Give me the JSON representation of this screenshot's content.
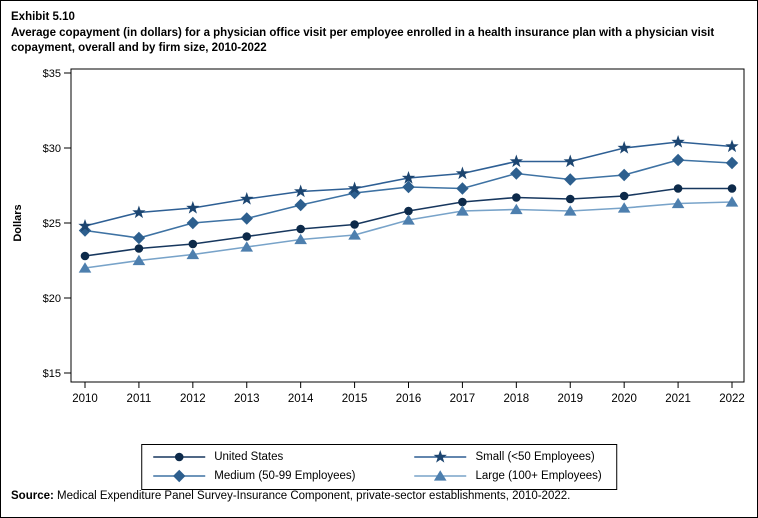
{
  "figure": {
    "exhibit_label": "Exhibit 5.10",
    "title": "Average copayment (in dollars) for a physician office visit per employee enrolled in a health insurance plan with a physician visit copayment, overall and by firm size, 2010-2022",
    "source_label": "Source:",
    "source_text": " Medical Expenditure Panel Survey-Insurance Component, private-sector establishments, 2010-2022."
  },
  "chart_data": {
    "type": "line",
    "title": "Average copayment (in dollars) for a physician office visit per employee enrolled in a health insurance plan with a physician visit copayment, overall and by firm size, 2010-2022",
    "xlabel": "",
    "ylabel": "Dollars",
    "x": [
      2010,
      2011,
      2012,
      2013,
      2014,
      2015,
      2016,
      2017,
      2018,
      2019,
      2020,
      2021,
      2022
    ],
    "ylim": [
      15,
      35
    ],
    "ytick_step": 5,
    "ytick_labels": [
      "$15",
      "$20",
      "$25",
      "$30",
      "$35"
    ],
    "grid": false,
    "legend_position": "bottom",
    "series": [
      {
        "name": "United States",
        "marker": "circle",
        "line_color": "#17375e",
        "marker_color": "#0d2a4a",
        "values": [
          22.8,
          23.3,
          23.6,
          24.1,
          24.6,
          24.9,
          25.8,
          26.4,
          26.7,
          26.6,
          26.8,
          27.3,
          27.3
        ]
      },
      {
        "name": "Medium (50-99 Employees)",
        "marker": "diamond",
        "line_color": "#3e72a3",
        "marker_color": "#2d5f8e",
        "values": [
          24.5,
          24.0,
          25.0,
          25.3,
          26.2,
          27.0,
          27.4,
          27.3,
          28.3,
          27.9,
          28.2,
          29.2,
          29.0
        ]
      },
      {
        "name": "Small (<50 Employees)",
        "marker": "star",
        "line_color": "#2e5f94",
        "marker_color": "#1c4570",
        "values": [
          24.8,
          25.7,
          26.0,
          26.6,
          27.1,
          27.3,
          28.0,
          28.3,
          29.1,
          29.1,
          30.0,
          30.4,
          30.1
        ]
      },
      {
        "name": "Large (100+ Employees)",
        "marker": "triangle",
        "line_color": "#78a3c9",
        "marker_color": "#4d7fae",
        "values": [
          22.0,
          22.5,
          22.9,
          23.4,
          23.9,
          24.2,
          25.2,
          25.8,
          25.9,
          25.8,
          26.0,
          26.3,
          26.4
        ]
      }
    ]
  }
}
